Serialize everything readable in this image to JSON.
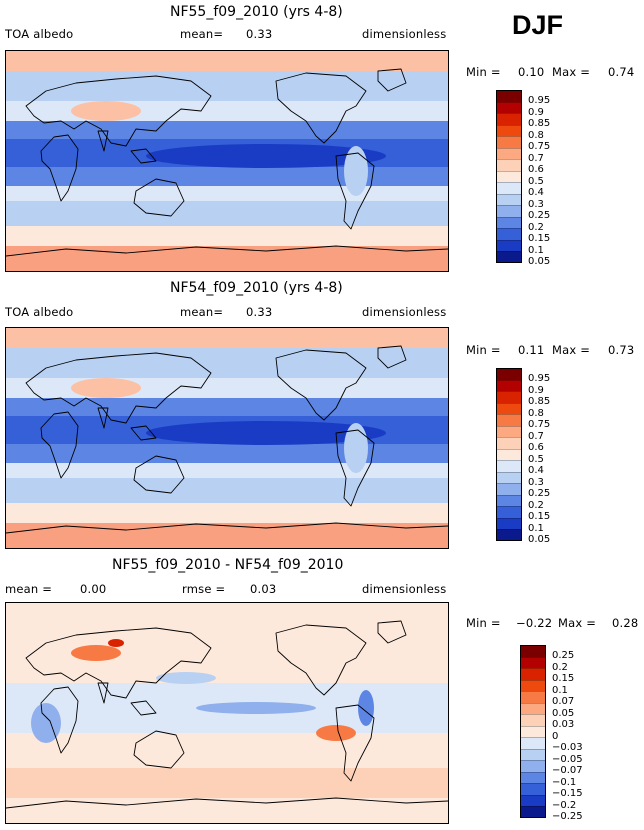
{
  "season": "DJF",
  "panels": [
    {
      "title": "NF55_f09_2010 (yrs 4-8)",
      "left_label": "TOA albedo",
      "center_label": "mean=",
      "center_value": "0.33",
      "right_label": "dimensionless",
      "min_label": "Min =",
      "min_value": "0.10",
      "max_label": "Max =",
      "max_value": "0.74"
    },
    {
      "title": "NF54_f09_2010 (yrs 4-8)",
      "left_label": "TOA albedo",
      "center_label": "mean=",
      "center_value": "0.33",
      "right_label": "dimensionless",
      "min_label": "Min =",
      "min_value": "0.11",
      "max_label": "Max =",
      "max_value": "0.73"
    },
    {
      "title": "NF55_f09_2010 - NF54_f09_2010",
      "left_label": "mean =",
      "left_value": "0.00",
      "center_label": "rmse =",
      "center_value": "0.03",
      "right_label": "dimensionless",
      "min_label": "Min =",
      "min_value": "−0.22",
      "max_label": "Max =",
      "max_value": "0.28"
    }
  ],
  "chart_data": [
    {
      "type": "heatmap",
      "title": "NF55_f09_2010 (yrs 4-8)",
      "variable": "TOA albedo",
      "units": "dimensionless",
      "mean": 0.33,
      "min": 0.1,
      "max": 0.74,
      "colorbar_levels": [
        "0.95",
        "0.9",
        "0.85",
        "0.8",
        "0.75",
        "0.7",
        "0.6",
        "0.5",
        "0.4",
        "0.3",
        "0.25",
        "0.2",
        "0.15",
        "0.1",
        "0.05"
      ],
      "colors": [
        "#7a0000",
        "#b30000",
        "#d92200",
        "#ee4a10",
        "#f77a45",
        "#fca982",
        "#fdd0b8",
        "#fde9dc",
        "#dce8f8",
        "#b8d0f2",
        "#8fb0ec",
        "#5d86e4",
        "#3560d8",
        "#1a3cc4",
        "#0a1a8c"
      ]
    },
    {
      "type": "heatmap",
      "title": "NF54_f09_2010 (yrs 4-8)",
      "variable": "TOA albedo",
      "units": "dimensionless",
      "mean": 0.33,
      "min": 0.11,
      "max": 0.73,
      "colorbar_levels": [
        "0.95",
        "0.9",
        "0.85",
        "0.8",
        "0.75",
        "0.7",
        "0.6",
        "0.5",
        "0.4",
        "0.3",
        "0.25",
        "0.2",
        "0.15",
        "0.1",
        "0.05"
      ],
      "colors": [
        "#7a0000",
        "#b30000",
        "#d92200",
        "#ee4a10",
        "#f77a45",
        "#fca982",
        "#fdd0b8",
        "#fde9dc",
        "#dce8f8",
        "#b8d0f2",
        "#8fb0ec",
        "#5d86e4",
        "#3560d8",
        "#1a3cc4",
        "#0a1a8c"
      ]
    },
    {
      "type": "heatmap",
      "title": "NF55_f09_2010 - NF54_f09_2010",
      "units": "dimensionless",
      "mean": 0.0,
      "rmse": 0.03,
      "min": -0.22,
      "max": 0.28,
      "colorbar_levels": [
        "0.25",
        "0.2",
        "0.15",
        "0.1",
        "0.07",
        "0.05",
        "0.03",
        "0",
        "−0.03",
        "−0.05",
        "−0.07",
        "−0.1",
        "−0.15",
        "−0.2",
        "−0.25"
      ],
      "colors": [
        "#7a0000",
        "#b30000",
        "#d92200",
        "#ee4a10",
        "#f77a45",
        "#fca982",
        "#fdd0b8",
        "#fde9dc",
        "#dce8f8",
        "#b8d0f2",
        "#8fb0ec",
        "#5d86e4",
        "#3560d8",
        "#1a3cc4",
        "#0a1a8c"
      ]
    }
  ]
}
